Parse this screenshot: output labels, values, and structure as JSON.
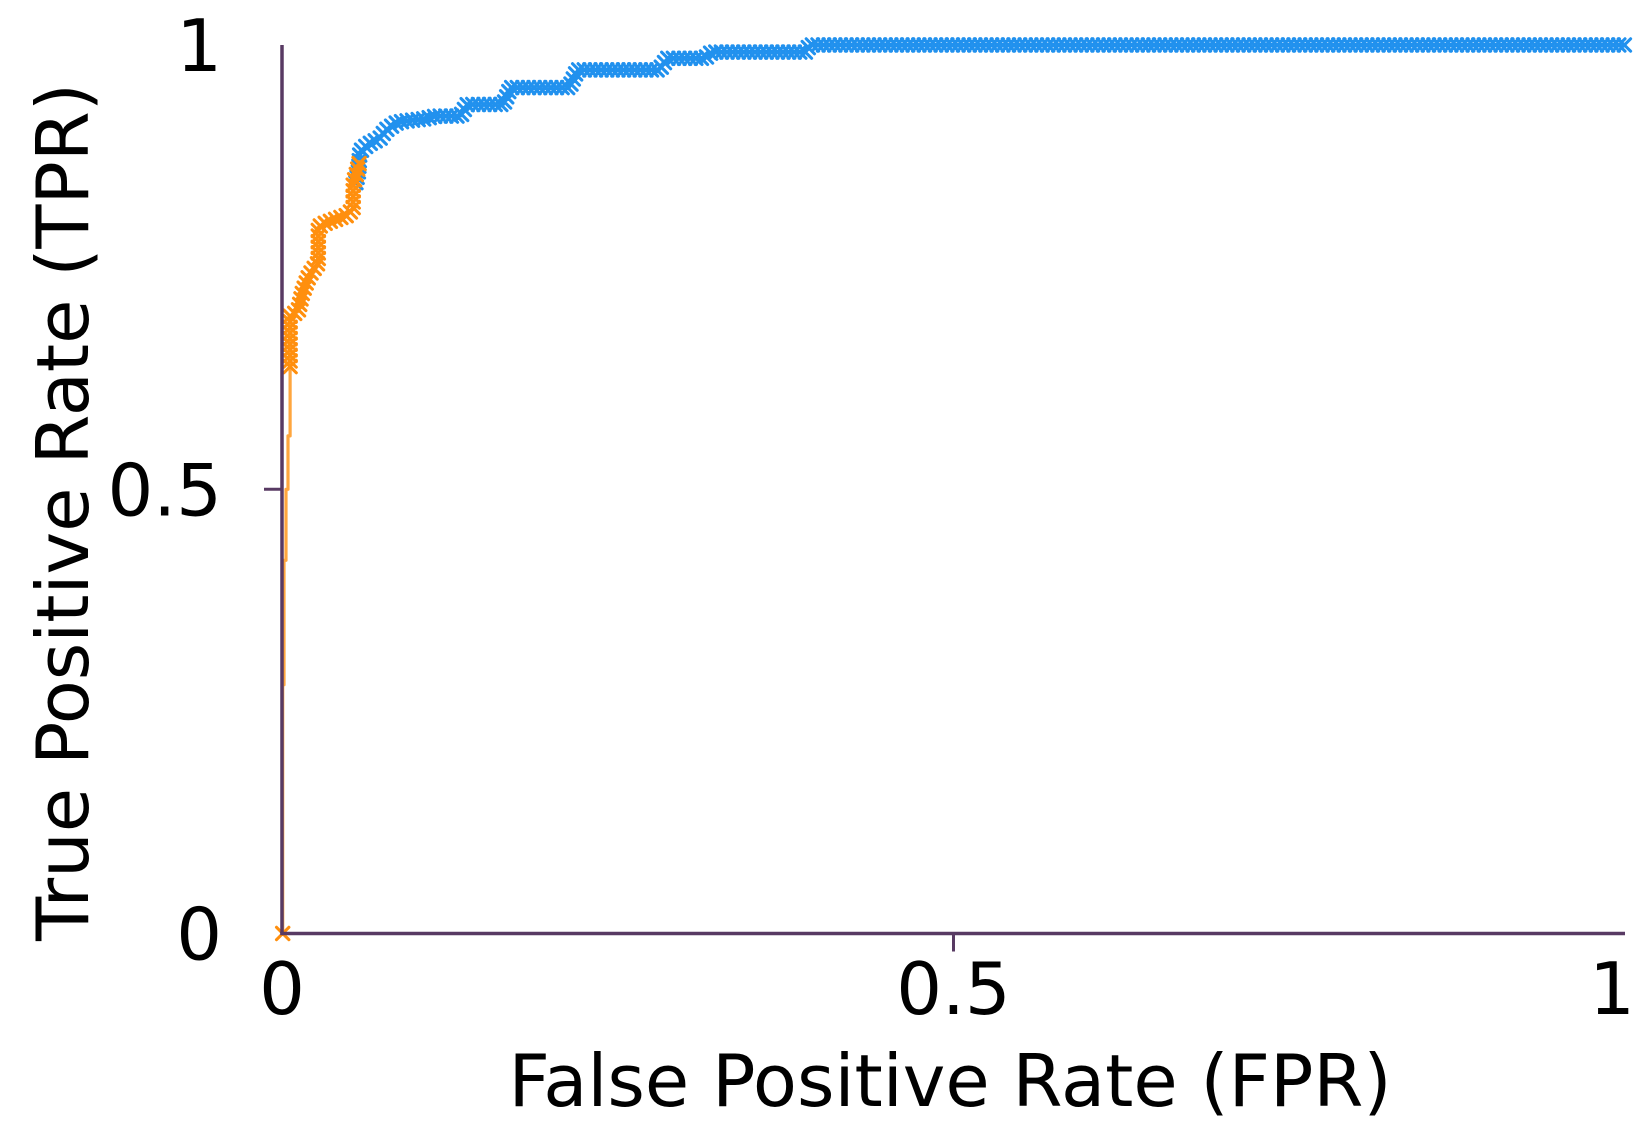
{
  "chart_data": {
    "type": "scatter",
    "title": "",
    "xlabel": "False Positive Rate (FPR)",
    "ylabel": "True Positive Rate (TPR)",
    "xlim": [
      0,
      1
    ],
    "ylim": [
      0,
      1
    ],
    "grid": false,
    "legend": "none",
    "background_color": "#ffffff",
    "axis_color": "#583a63",
    "text_color": "#000000",
    "x_ticks": [
      {
        "label": "0",
        "value": 0
      },
      {
        "label": "0.5",
        "value": 0.5
      },
      {
        "label": "1",
        "value": 1
      }
    ],
    "y_ticks": [
      {
        "label": "0",
        "value": 0
      },
      {
        "label": "0.5",
        "value": 0.5
      },
      {
        "label": "1",
        "value": 1
      }
    ],
    "tick_marks_x": [
      0.5
    ],
    "tick_marks_y": [
      0.5
    ],
    "series": [
      {
        "name": "roc-curve-blue",
        "color": "#2191ee",
        "line_color": "#2f97ec",
        "line_width": 3,
        "marker": "x",
        "marker_size": 6.2,
        "marker_stroke": 3.1,
        "marker_spacing_px": 5.6,
        "marker_from_index": 0,
        "extra_marker_points": [],
        "points": [
          [
            0.055,
            0.845
          ],
          [
            0.057,
            0.858
          ],
          [
            0.058,
            0.88
          ],
          [
            0.064,
            0.888
          ],
          [
            0.073,
            0.895
          ],
          [
            0.077,
            0.904
          ],
          [
            0.086,
            0.913
          ],
          [
            0.1,
            0.916
          ],
          [
            0.103,
            0.916
          ],
          [
            0.115,
            0.92
          ],
          [
            0.133,
            0.92
          ],
          [
            0.138,
            0.933
          ],
          [
            0.165,
            0.933
          ],
          [
            0.17,
            0.952
          ],
          [
            0.214,
            0.952
          ],
          [
            0.22,
            0.972
          ],
          [
            0.281,
            0.972
          ],
          [
            0.287,
            0.985
          ],
          [
            0.315,
            0.985
          ],
          [
            0.32,
            0.992
          ],
          [
            0.39,
            0.992
          ],
          [
            0.393,
            1.0
          ],
          [
            1.0,
            1.0
          ]
        ]
      },
      {
        "name": "roc-curve-orange",
        "color": "#ff8f0e",
        "line_color": "#ffa63e",
        "line_width": 3.2,
        "marker": "x",
        "marker_size": 6.2,
        "marker_stroke": 3.1,
        "marker_spacing_px": 5.6,
        "marker_from_index": 9,
        "extra_marker_points": [
          [
            0.0005,
            0.0
          ]
        ],
        "points": [
          [
            0.0005,
            0.0
          ],
          [
            0.0005,
            0.28
          ],
          [
            0.0015,
            0.28
          ],
          [
            0.0015,
            0.42
          ],
          [
            0.003,
            0.42
          ],
          [
            0.003,
            0.5
          ],
          [
            0.0045,
            0.5
          ],
          [
            0.0045,
            0.56
          ],
          [
            0.006,
            0.56
          ],
          [
            0.006,
            0.638
          ],
          [
            0.006,
            0.695
          ],
          [
            0.012,
            0.7
          ],
          [
            0.015,
            0.72
          ],
          [
            0.02,
            0.74
          ],
          [
            0.027,
            0.755
          ],
          [
            0.027,
            0.795
          ],
          [
            0.033,
            0.8
          ],
          [
            0.048,
            0.808
          ],
          [
            0.053,
            0.815
          ],
          [
            0.053,
            0.843
          ],
          [
            0.0555,
            0.855
          ],
          [
            0.058,
            0.87
          ]
        ]
      }
    ]
  }
}
